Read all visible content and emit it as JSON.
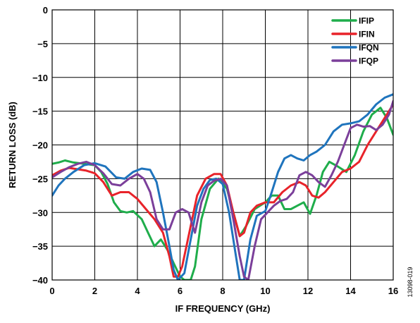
{
  "chart_data": {
    "type": "line",
    "xlabel": "IF FREQUENCY (GHz)",
    "ylabel": "RETURN LOSS (dB)",
    "xlim": [
      0,
      16
    ],
    "ylim": [
      -40,
      0
    ],
    "xticks": [
      0,
      2,
      4,
      6,
      8,
      10,
      12,
      14,
      16
    ],
    "yticks": [
      0,
      -5,
      -10,
      -15,
      -20,
      -25,
      -30,
      -35,
      -40
    ],
    "xtick_labels": [
      "0",
      "2",
      "4",
      "6",
      "8",
      "10",
      "12",
      "14",
      "16"
    ],
    "ytick_labels": [
      "0",
      "−5",
      "−10",
      "−15",
      "−20",
      "−25",
      "−30",
      "−35",
      "−40"
    ],
    "grid": true,
    "legend_position": "top-right",
    "figure_id": "13098-019",
    "series": [
      {
        "name": "IFIP",
        "color": "#1fad4b",
        "x": [
          0,
          0.3,
          0.6,
          1.0,
          1.5,
          2.0,
          2.3,
          2.6,
          2.9,
          3.2,
          3.5,
          3.8,
          4.2,
          4.5,
          4.8,
          5.1,
          5.4,
          5.7,
          6.0,
          6.2,
          6.35,
          6.5,
          6.7,
          7.0,
          7.4,
          7.8,
          8.2,
          8.5,
          8.8,
          9.1,
          9.5,
          10.0,
          10.3,
          10.6,
          10.9,
          11.2,
          11.5,
          11.8,
          12.1,
          12.4,
          12.7,
          13.0,
          13.4,
          13.8,
          14.2,
          14.6,
          15.0,
          15.4,
          15.7,
          16.0
        ],
        "y": [
          -22.8,
          -22.6,
          -22.3,
          -22.6,
          -22.8,
          -23.0,
          -24.0,
          -25.8,
          -28.5,
          -29.8,
          -30.0,
          -29.8,
          -31.0,
          -33.0,
          -35.0,
          -34.0,
          -35.5,
          -37.5,
          -39.5,
          -40.0,
          -40.0,
          -40.0,
          -38.0,
          -31.0,
          -26.5,
          -25.0,
          -26.5,
          -30.0,
          -33.5,
          -32.0,
          -29.5,
          -28.5,
          -27.5,
          -27.5,
          -29.5,
          -29.5,
          -29.0,
          -28.5,
          -30.2,
          -27.5,
          -24.0,
          -22.5,
          -23.2,
          -24.0,
          -21.5,
          -18.0,
          -15.5,
          -14.5,
          -16.0,
          -18.5
        ]
      },
      {
        "name": "IFIN",
        "color": "#e8232a",
        "x": [
          0,
          0.4,
          0.8,
          1.2,
          1.6,
          2.0,
          2.4,
          2.8,
          3.2,
          3.6,
          4.0,
          4.4,
          4.8,
          5.2,
          5.5,
          5.7,
          5.9,
          6.1,
          6.4,
          6.8,
          7.2,
          7.6,
          7.9,
          8.2,
          8.5,
          8.8,
          9.0,
          9.3,
          9.6,
          10.0,
          10.4,
          10.8,
          11.2,
          11.6,
          11.9,
          12.2,
          12.5,
          12.8,
          13.2,
          13.6,
          14.0,
          14.4,
          14.8,
          15.2,
          15.6,
          16.0
        ],
        "y": [
          -24.5,
          -23.8,
          -23.4,
          -23.6,
          -23.8,
          -24.2,
          -25.5,
          -27.5,
          -27.0,
          -27.0,
          -28.0,
          -29.5,
          -31.0,
          -33.0,
          -36.5,
          -39.5,
          -39.5,
          -38.0,
          -33.5,
          -27.5,
          -25.0,
          -24.3,
          -24.3,
          -26.0,
          -30.0,
          -33.5,
          -33.0,
          -30.0,
          -29.0,
          -28.5,
          -28.5,
          -27.0,
          -26.0,
          -25.5,
          -26.0,
          -27.5,
          -27.8,
          -27.0,
          -25.5,
          -24.0,
          -23.5,
          -22.5,
          -20.0,
          -18.0,
          -16.0,
          -14.0
        ]
      },
      {
        "name": "IFQN",
        "color": "#1f74bd",
        "x": [
          0,
          0.3,
          0.6,
          1.0,
          1.5,
          2.0,
          2.5,
          3.0,
          3.4,
          3.8,
          4.2,
          4.6,
          4.9,
          5.2,
          5.5,
          5.7,
          5.9,
          6.2,
          6.5,
          6.8,
          7.1,
          7.4,
          7.7,
          8.0,
          8.3,
          8.6,
          8.8,
          9.0,
          9.3,
          9.6,
          10.0,
          10.3,
          10.6,
          10.9,
          11.2,
          11.5,
          11.8,
          12.1,
          12.4,
          12.8,
          13.2,
          13.6,
          14.0,
          14.4,
          14.8,
          15.2,
          15.6,
          16.0
        ],
        "y": [
          -27.5,
          -26.0,
          -25.0,
          -24.0,
          -23.0,
          -22.7,
          -23.2,
          -24.8,
          -25.0,
          -24.0,
          -23.5,
          -23.7,
          -25.5,
          -30.0,
          -35.0,
          -38.5,
          -40.0,
          -39.0,
          -34.0,
          -29.0,
          -26.5,
          -25.2,
          -25.0,
          -25.8,
          -30.0,
          -36.0,
          -40.0,
          -40.0,
          -34.0,
          -30.5,
          -29.8,
          -27.0,
          -24.0,
          -22.0,
          -21.5,
          -22.0,
          -22.3,
          -21.5,
          -21.0,
          -20.0,
          -18.0,
          -17.0,
          -16.8,
          -16.5,
          -15.5,
          -14.0,
          -13.0,
          -12.5
        ]
      },
      {
        "name": "IFQP",
        "color": "#7b3f9a",
        "x": [
          0,
          0.4,
          0.8,
          1.2,
          1.6,
          2.0,
          2.4,
          2.8,
          3.2,
          3.6,
          4.0,
          4.3,
          4.6,
          4.9,
          5.2,
          5.5,
          5.8,
          6.1,
          6.4,
          6.7,
          7.0,
          7.3,
          7.6,
          7.9,
          8.2,
          8.5,
          8.8,
          9.0,
          9.2,
          9.5,
          9.8,
          10.1,
          10.4,
          10.7,
          11.0,
          11.3,
          11.6,
          11.9,
          12.2,
          12.5,
          12.8,
          13.1,
          13.4,
          13.7,
          14.0,
          14.3,
          14.6,
          14.9,
          15.2,
          15.5,
          15.8,
          16.0
        ],
        "y": [
          -24.8,
          -24.0,
          -23.3,
          -22.8,
          -22.5,
          -23.0,
          -24.2,
          -25.8,
          -26.0,
          -25.0,
          -24.3,
          -25.0,
          -27.0,
          -31.0,
          -32.5,
          -32.5,
          -30.0,
          -29.5,
          -30.0,
          -33.0,
          -28.5,
          -26.0,
          -25.3,
          -25.0,
          -26.0,
          -31.0,
          -36.5,
          -39.5,
          -40.0,
          -35.0,
          -31.0,
          -30.0,
          -29.0,
          -28.3,
          -28.0,
          -27.0,
          -24.5,
          -24.0,
          -24.5,
          -25.5,
          -26.2,
          -24.5,
          -22.5,
          -20.0,
          -17.5,
          -17.0,
          -17.3,
          -17.2,
          -17.8,
          -17.0,
          -15.5,
          -13.5
        ]
      }
    ]
  }
}
